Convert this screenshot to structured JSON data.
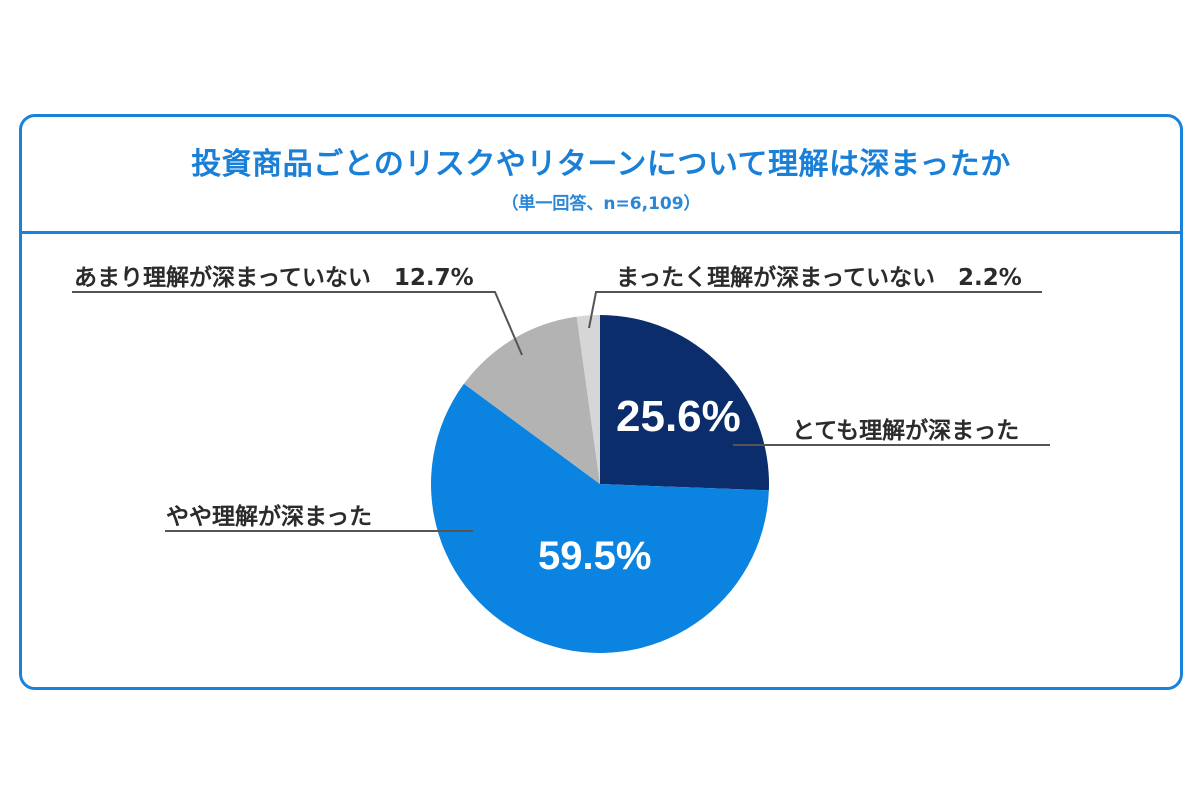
{
  "header": {
    "title": "投資商品ごとのリスクやリターンについて理解は深まったか",
    "subtitle": "（単一回答、n=6,109）"
  },
  "slices": [
    {
      "label": "とても理解が深まった",
      "value": 25.6,
      "value_text": "25.6%",
      "color": "#0B2D6B"
    },
    {
      "label": "やや理解が深まった",
      "value": 59.5,
      "value_text": "59.5%",
      "color": "#0A84E0"
    },
    {
      "label": "あまり理解が深まっていない",
      "value": 12.7,
      "value_text": "12.7%",
      "color": "#B3B3B3"
    },
    {
      "label": "まったく理解が深まっていない",
      "value": 2.2,
      "value_text": "2.2%",
      "color": "#D6D6D6"
    }
  ],
  "labels": {
    "very": "とても理解が深まった",
    "somewhat": "やや理解が深まった",
    "not_much": "あまり理解が深まっていない　12.7%",
    "not_at_all": "まったく理解が深まっていない　2.2%",
    "very_pct": "25.6%",
    "somewhat_pct": "59.5%"
  },
  "colors": {
    "frame": "#1A82DB",
    "title": "#1A7FD6",
    "leader": "#555555"
  },
  "chart_data": {
    "type": "pie",
    "title": "投資商品ごとのリスクやリターンについて理解は深まったか",
    "subtitle": "（単一回答、n=6,109）",
    "categories": [
      "とても理解が深まった",
      "やや理解が深まった",
      "あまり理解が深まっていない",
      "まったく理解が深まっていない"
    ],
    "values": [
      25.6,
      59.5,
      12.7,
      2.2
    ],
    "unit": "%",
    "n": 6109,
    "start_angle": "12 o'clock",
    "direction": "clockwise",
    "colors": [
      "#0B2D6B",
      "#0A84E0",
      "#B3B3B3",
      "#D6D6D6"
    ],
    "legend": "none (leader-line labels)"
  }
}
